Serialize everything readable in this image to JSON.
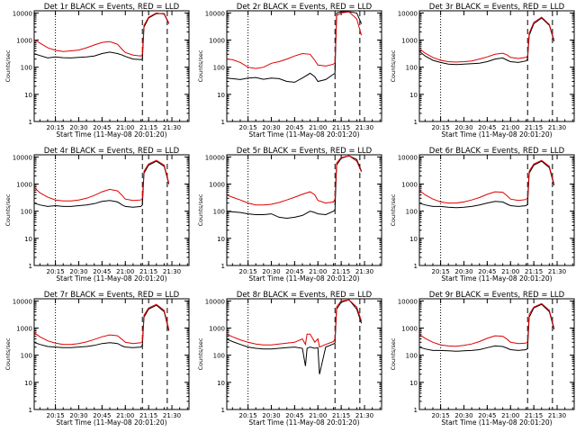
{
  "page": {
    "background": "#ffffff"
  },
  "colors": {
    "events": "#000000",
    "lld": "#e00000",
    "axis": "#000000"
  },
  "chart_data": [
    {
      "type": "line",
      "title": "Det 1r BLACK = Events, RED = LLD",
      "xlabel": "Start Time (11-May-08 20:01:20)",
      "ylabel": "Counts/sec",
      "yscale": "log",
      "ylim": [
        1,
        12000
      ],
      "xlim": [
        "20:01:20",
        "21:41:00"
      ],
      "x_ticks": [
        "20:15",
        "20:30",
        "20:45",
        "21:00",
        "21:15",
        "21:30"
      ],
      "y_ticks": [
        "1",
        "10",
        "100",
        "1000",
        "10000"
      ],
      "vlines": [
        {
          "time": "20:15",
          "style": "dotted"
        },
        {
          "time": "21:11",
          "style": "dashed"
        },
        {
          "time": "21:27",
          "style": "dashed"
        }
      ],
      "x": [
        "20:01",
        "20:05",
        "20:10",
        "20:15",
        "20:20",
        "20:25",
        "20:30",
        "20:35",
        "20:40",
        "20:45",
        "20:50",
        "20:55",
        "20:58",
        "21:00",
        "21:05",
        "21:10",
        "21:11",
        "21:12",
        "21:15",
        "21:20",
        "21:25",
        "21:28"
      ],
      "series": [
        {
          "name": "Events",
          "color": "#000000",
          "values": [
            320,
            270,
            220,
            240,
            225,
            220,
            230,
            240,
            260,
            320,
            360,
            320,
            280,
            250,
            200,
            190,
            200,
            3000,
            6500,
            9500,
            9500,
            4200
          ]
        },
        {
          "name": "LLD",
          "color": "#e00000",
          "values": [
            1100,
            780,
            520,
            420,
            380,
            400,
            430,
            520,
            660,
            820,
            880,
            700,
            450,
            350,
            280,
            260,
            300,
            3500,
            7000,
            10000,
            9000,
            4000
          ]
        }
      ]
    },
    {
      "type": "line",
      "title": "Det 2r BLACK = Events, RED = LLD",
      "xlabel": "Start Time (11-May-08 20:01:20)",
      "ylabel": "Counts/sec",
      "yscale": "log",
      "ylim": [
        1,
        12000
      ],
      "xlim": [
        "20:01:20",
        "21:41:00"
      ],
      "x_ticks": [
        "20:15",
        "20:30",
        "20:45",
        "21:00",
        "21:15",
        "21:30"
      ],
      "y_ticks": [
        "1",
        "10",
        "100",
        "1000",
        "10000"
      ],
      "vlines": [
        {
          "time": "20:15",
          "style": "dotted"
        },
        {
          "time": "21:11",
          "style": "dashed"
        },
        {
          "time": "21:27",
          "style": "dashed"
        }
      ],
      "x": [
        "20:01",
        "20:05",
        "20:10",
        "20:15",
        "20:20",
        "20:25",
        "20:30",
        "20:35",
        "20:40",
        "20:45",
        "20:50",
        "20:55",
        "20:58",
        "21:00",
        "21:05",
        "21:10",
        "21:11",
        "21:12",
        "21:15",
        "21:20",
        "21:25",
        "21:28"
      ],
      "series": [
        {
          "name": "Events",
          "color": "#000000",
          "values": [
            40,
            38,
            35,
            40,
            42,
            36,
            40,
            38,
            30,
            28,
            40,
            60,
            45,
            30,
            35,
            55,
            60,
            10000,
            11000,
            11000,
            10000,
            4000
          ]
        },
        {
          "name": "LLD",
          "color": "#e00000",
          "values": [
            200,
            190,
            150,
            100,
            90,
            100,
            140,
            160,
            200,
            260,
            320,
            300,
            180,
            120,
            110,
            130,
            150,
            8000,
            10000,
            11000,
            6000,
            1500
          ]
        }
      ]
    },
    {
      "type": "line",
      "title": "Det 3r BLACK = Events, RED = LLD",
      "xlabel": "Start Time (11-May-08 20:01:20)",
      "ylabel": "Counts/sec",
      "yscale": "log",
      "ylim": [
        1,
        12000
      ],
      "xlim": [
        "20:01:20",
        "21:41:00"
      ],
      "x_ticks": [
        "20:15",
        "20:30",
        "20:45",
        "21:00",
        "21:15",
        "21:30"
      ],
      "y_ticks": [
        "1",
        "10",
        "100",
        "1000",
        "10000"
      ],
      "vlines": [
        {
          "time": "20:15",
          "style": "dotted"
        },
        {
          "time": "21:11",
          "style": "dashed"
        },
        {
          "time": "21:27",
          "style": "dashed"
        }
      ],
      "x": [
        "20:01",
        "20:05",
        "20:10",
        "20:15",
        "20:20",
        "20:25",
        "20:30",
        "20:35",
        "20:40",
        "20:45",
        "20:50",
        "20:55",
        "20:58",
        "21:00",
        "21:05",
        "21:10",
        "21:11",
        "21:12",
        "21:15",
        "21:20",
        "21:25",
        "21:28"
      ],
      "series": [
        {
          "name": "Events",
          "color": "#000000",
          "values": [
            400,
            260,
            180,
            150,
            130,
            125,
            130,
            135,
            140,
            160,
            200,
            220,
            180,
            160,
            150,
            170,
            200,
            1500,
            4000,
            6500,
            3500,
            900
          ]
        },
        {
          "name": "LLD",
          "color": "#e00000",
          "values": [
            500,
            330,
            230,
            180,
            160,
            155,
            160,
            170,
            200,
            240,
            300,
            330,
            280,
            230,
            210,
            230,
            260,
            1800,
            4500,
            7000,
            3800,
            1000
          ]
        }
      ]
    },
    {
      "type": "line",
      "title": "Det 4r BLACK = Events, RED = LLD",
      "xlabel": "Start Time (11-May-08 20:01:20)",
      "ylabel": "Counts/sec",
      "yscale": "log",
      "ylim": [
        1,
        12000
      ],
      "xlim": [
        "20:01:20",
        "21:41:00"
      ],
      "x_ticks": [
        "20:15",
        "20:30",
        "20:45",
        "21:00",
        "21:15",
        "21:30"
      ],
      "y_ticks": [
        "1",
        "10",
        "100",
        "1000",
        "10000"
      ],
      "vlines": [
        {
          "time": "20:15",
          "style": "dotted"
        },
        {
          "time": "21:11",
          "style": "dashed"
        },
        {
          "time": "21:27",
          "style": "dashed"
        }
      ],
      "x": [
        "20:01",
        "20:05",
        "20:10",
        "20:15",
        "20:20",
        "20:25",
        "20:30",
        "20:35",
        "20:40",
        "20:45",
        "20:50",
        "20:55",
        "20:58",
        "21:00",
        "21:05",
        "21:10",
        "21:11",
        "21:12",
        "21:15",
        "21:20",
        "21:25",
        "21:28"
      ],
      "series": [
        {
          "name": "Events",
          "color": "#000000",
          "values": [
            200,
            170,
            150,
            160,
            150,
            150,
            160,
            170,
            190,
            230,
            250,
            220,
            170,
            150,
            140,
            150,
            170,
            2500,
            5000,
            7000,
            4500,
            1000
          ]
        },
        {
          "name": "LLD",
          "color": "#e00000",
          "values": [
            800,
            480,
            330,
            260,
            240,
            240,
            260,
            300,
            380,
            520,
            640,
            560,
            380,
            280,
            250,
            260,
            300,
            3000,
            5500,
            7500,
            5000,
            1100
          ]
        }
      ]
    },
    {
      "type": "line",
      "title": "Det 5r BLACK = Events, RED = LLD",
      "xlabel": "Start Time (11-May-08 20:01:20)",
      "ylabel": "Counts/sec",
      "yscale": "log",
      "ylim": [
        1,
        12000
      ],
      "xlim": [
        "20:01:20",
        "21:41:00"
      ],
      "x_ticks": [
        "20:15",
        "20:30",
        "20:45",
        "21:00",
        "21:15",
        "21:30"
      ],
      "y_ticks": [
        "1",
        "10",
        "100",
        "1000",
        "10000"
      ],
      "vlines": [
        {
          "time": "20:15",
          "style": "dotted"
        },
        {
          "time": "21:11",
          "style": "dashed"
        },
        {
          "time": "21:27",
          "style": "dashed"
        }
      ],
      "x": [
        "20:01",
        "20:05",
        "20:10",
        "20:15",
        "20:20",
        "20:25",
        "20:30",
        "20:35",
        "20:40",
        "20:45",
        "20:50",
        "20:55",
        "20:58",
        "21:00",
        "21:05",
        "21:10",
        "21:11",
        "21:12",
        "21:15",
        "21:20",
        "21:25",
        "21:28"
      ],
      "series": [
        {
          "name": "Events",
          "color": "#000000",
          "values": [
            100,
            95,
            90,
            80,
            75,
            75,
            80,
            60,
            55,
            60,
            70,
            100,
            90,
            80,
            75,
            100,
            110,
            5000,
            9000,
            11000,
            8000,
            3000
          ]
        },
        {
          "name": "LLD",
          "color": "#e00000",
          "values": [
            400,
            330,
            260,
            200,
            170,
            170,
            180,
            210,
            260,
            330,
            420,
            520,
            400,
            250,
            200,
            220,
            280,
            6000,
            9500,
            11000,
            7000,
            2800
          ]
        }
      ]
    },
    {
      "type": "line",
      "title": "Det 6r BLACK = Events, RED = LLD",
      "xlabel": "Start Time (11-May-08 20:01:20)",
      "ylabel": "Counts/sec",
      "yscale": "log",
      "ylim": [
        1,
        12000
      ],
      "xlim": [
        "20:01:20",
        "21:41:00"
      ],
      "x_ticks": [
        "20:15",
        "20:30",
        "20:45",
        "21:00",
        "21:15",
        "21:30"
      ],
      "y_ticks": [
        "1",
        "10",
        "100",
        "1000",
        "10000"
      ],
      "vlines": [
        {
          "time": "20:15",
          "style": "dotted"
        },
        {
          "time": "21:11",
          "style": "dashed"
        },
        {
          "time": "21:27",
          "style": "dashed"
        }
      ],
      "x": [
        "20:01",
        "20:05",
        "20:10",
        "20:15",
        "20:20",
        "20:25",
        "20:30",
        "20:35",
        "20:40",
        "20:45",
        "20:50",
        "20:55",
        "20:58",
        "21:00",
        "21:05",
        "21:10",
        "21:11",
        "21:12",
        "21:15",
        "21:20",
        "21:25",
        "21:28"
      ],
      "series": [
        {
          "name": "Events",
          "color": "#000000",
          "values": [
            200,
            170,
            150,
            150,
            140,
            135,
            140,
            150,
            170,
            200,
            230,
            220,
            180,
            160,
            150,
            160,
            180,
            2500,
            5000,
            7000,
            4000,
            900
          ]
        },
        {
          "name": "LLD",
          "color": "#e00000",
          "values": [
            600,
            400,
            280,
            220,
            200,
            200,
            220,
            260,
            320,
            420,
            520,
            500,
            360,
            280,
            250,
            270,
            320,
            3000,
            5500,
            7500,
            4500,
            1000
          ]
        }
      ]
    },
    {
      "type": "line",
      "title": "Det 7r BLACK = Events, RED = LLD",
      "xlabel": "Start Time (11-May-08 20:01:20)",
      "ylabel": "Counts/sec",
      "yscale": "log",
      "ylim": [
        1,
        12000
      ],
      "xlim": [
        "20:01:20",
        "21:41:00"
      ],
      "x_ticks": [
        "20:15",
        "20:30",
        "20:45",
        "21:00",
        "21:15",
        "21:30"
      ],
      "y_ticks": [
        "1",
        "10",
        "100",
        "1000",
        "10000"
      ],
      "vlines": [
        {
          "time": "20:15",
          "style": "dotted"
        },
        {
          "time": "21:11",
          "style": "dashed"
        },
        {
          "time": "21:27",
          "style": "dashed"
        }
      ],
      "x": [
        "20:01",
        "20:05",
        "20:10",
        "20:15",
        "20:20",
        "20:25",
        "20:30",
        "20:35",
        "20:40",
        "20:45",
        "20:50",
        "20:55",
        "20:58",
        "21:00",
        "21:05",
        "21:10",
        "21:11",
        "21:12",
        "21:15",
        "21:20",
        "21:25",
        "21:28"
      ],
      "series": [
        {
          "name": "Events",
          "color": "#000000",
          "values": [
            300,
            250,
            210,
            200,
            190,
            190,
            200,
            210,
            230,
            270,
            290,
            270,
            220,
            200,
            190,
            200,
            230,
            2500,
            5000,
            7000,
            4000,
            800
          ]
        },
        {
          "name": "LLD",
          "color": "#e00000",
          "values": [
            700,
            480,
            340,
            280,
            250,
            250,
            270,
            310,
            380,
            480,
            560,
            520,
            380,
            300,
            270,
            290,
            330,
            3000,
            5500,
            7500,
            4500,
            900
          ]
        }
      ]
    },
    {
      "type": "line",
      "title": "Det 8r BLACK = Events, RED = LLD",
      "xlabel": "Start Time (11-May-08 20:01:20)",
      "ylabel": "Counts/sec",
      "yscale": "log",
      "ylim": [
        1,
        12000
      ],
      "xlim": [
        "20:01:20",
        "21:41:00"
      ],
      "x_ticks": [
        "20:15",
        "20:30",
        "20:45",
        "21:00",
        "21:15",
        "21:30"
      ],
      "y_ticks": [
        "1",
        "10",
        "100",
        "1000",
        "10000"
      ],
      "vlines": [
        {
          "time": "20:15",
          "style": "dotted"
        },
        {
          "time": "21:11",
          "style": "dashed"
        },
        {
          "time": "21:27",
          "style": "dashed"
        }
      ],
      "x": [
        "20:01",
        "20:05",
        "20:10",
        "20:15",
        "20:20",
        "20:25",
        "20:30",
        "20:35",
        "20:40",
        "20:45",
        "20:50",
        "20:52",
        "20:53",
        "20:55",
        "20:58",
        "21:00",
        "21:01",
        "21:05",
        "21:10",
        "21:11",
        "21:12",
        "21:15",
        "21:20",
        "21:25",
        "21:28"
      ],
      "series": [
        {
          "name": "Events",
          "color": "#000000",
          "values": [
            400,
            320,
            250,
            200,
            180,
            170,
            170,
            180,
            190,
            200,
            180,
            40,
            180,
            200,
            180,
            190,
            20,
            200,
            260,
            280,
            5000,
            9000,
            11000,
            5000,
            1500
          ]
        },
        {
          "name": "LLD",
          "color": "#e00000",
          "values": [
            600,
            480,
            370,
            300,
            260,
            240,
            240,
            260,
            280,
            300,
            400,
            250,
            600,
            600,
            300,
            400,
            200,
            250,
            320,
            400,
            6000,
            10000,
            11000,
            6000,
            1800
          ]
        }
      ]
    },
    {
      "type": "line",
      "title": "Det 9r BLACK = Events, RED = LLD",
      "xlabel": "Start Time (11-May-08 20:01:20)",
      "ylabel": "Counts/sec",
      "yscale": "log",
      "ylim": [
        1,
        12000
      ],
      "xlim": [
        "20:01:20",
        "21:41:00"
      ],
      "x_ticks": [
        "20:15",
        "20:30",
        "20:45",
        "21:00",
        "21:15",
        "21:30"
      ],
      "y_ticks": [
        "1",
        "10",
        "100",
        "1000",
        "10000"
      ],
      "vlines": [
        {
          "time": "20:15",
          "style": "dotted"
        },
        {
          "time": "21:11",
          "style": "dashed"
        },
        {
          "time": "21:27",
          "style": "dashed"
        }
      ],
      "x": [
        "20:01",
        "20:05",
        "20:10",
        "20:15",
        "20:20",
        "20:25",
        "20:30",
        "20:35",
        "20:40",
        "20:45",
        "20:50",
        "20:55",
        "20:58",
        "21:00",
        "21:05",
        "21:10",
        "21:11",
        "21:12",
        "21:15",
        "21:20",
        "21:25",
        "21:28"
      ],
      "series": [
        {
          "name": "Events",
          "color": "#000000",
          "values": [
            200,
            170,
            150,
            150,
            145,
            140,
            145,
            150,
            160,
            190,
            220,
            210,
            180,
            160,
            150,
            160,
            180,
            2500,
            5500,
            7500,
            4000,
            900
          ]
        },
        {
          "name": "LLD",
          "color": "#e00000",
          "values": [
            600,
            420,
            300,
            240,
            220,
            215,
            230,
            260,
            320,
            420,
            520,
            500,
            380,
            300,
            270,
            280,
            320,
            3200,
            6000,
            8000,
            4500,
            1000
          ]
        }
      ]
    }
  ]
}
